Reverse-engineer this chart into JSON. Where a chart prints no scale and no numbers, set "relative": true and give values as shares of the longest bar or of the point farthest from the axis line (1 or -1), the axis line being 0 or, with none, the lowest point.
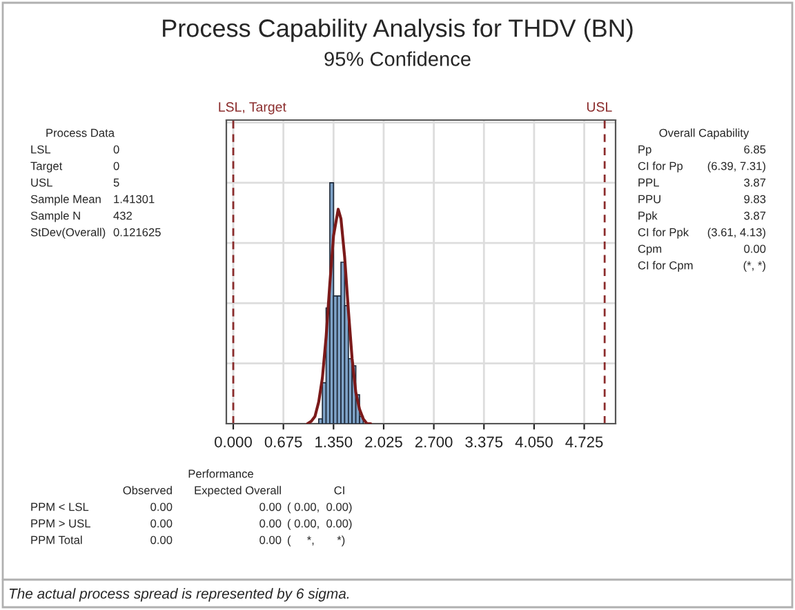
{
  "chart_data": {
    "type": "histogram",
    "title": "Process Capability Analysis for THDV (BN)",
    "subtitle": "95% Confidence",
    "relative": true,
    "xlim": [
      -0.093,
      5.147
    ],
    "xticks": [
      {
        "value": 0,
        "label": "0.000"
      },
      {
        "value": 0.675,
        "label": "0.675"
      },
      {
        "value": 1.35,
        "label": "1.350"
      },
      {
        "value": 2.025,
        "label": "2.025"
      },
      {
        "value": 2.7,
        "label": "2.700"
      },
      {
        "value": 3.375,
        "label": "3.375"
      },
      {
        "value": 4.05,
        "label": "4.050"
      },
      {
        "value": 4.725,
        "label": "4.725"
      }
    ],
    "tick_labels": "x",
    "grid": true,
    "series": [
      {
        "type": "histogram",
        "color": "#7fa3c8",
        "bins": [
          1.15,
          1.2,
          1.25,
          1.3,
          1.35,
          1.4,
          1.45,
          1.5,
          1.55,
          1.6,
          1.65,
          1.7,
          1.75
        ],
        "values": [
          0.02,
          0.17,
          0.48,
          1,
          0.53,
          0.53,
          0.67,
          0.49,
          0.27,
          0.24,
          0.12,
          0.03
        ]
      },
      {
        "type": "line",
        "color": "#7b1a1a",
        "x": [
          1.0,
          1.05,
          1.1,
          1.15,
          1.2,
          1.25,
          1.3,
          1.35,
          1.413,
          1.45,
          1.5,
          1.55,
          1.6,
          1.65,
          1.7,
          1.75,
          1.8,
          1.85
        ],
        "values": [
          0,
          0.01,
          0.03,
          0.09,
          0.19,
          0.36,
          0.58,
          0.78,
          0.89,
          0.85,
          0.69,
          0.47,
          0.27,
          0.13,
          0.06,
          0.02,
          0,
          0
        ]
      }
    ],
    "ref_lines": [
      {
        "axis": "x",
        "value": 0,
        "label": "LSL, Target",
        "color": "#8b2c2c",
        "line_style": "dashed"
      },
      {
        "axis": "x",
        "value": 5,
        "label": "USL",
        "color": "#8b2c2c",
        "line_style": "dashed"
      }
    ],
    "annotations": [
      "Process Data\nLSL\t0\nTarget\t0\nUSL\t5\nSample Mean\t1.41301\nSample N\t432\nStDev(Overall)\t0.121625",
      "Overall Capability\nPp\t6.85\nCI for Pp\t(6.39, 7.31)\nPPL\t3.87\nPPU\t9.83\nPpk\t3.87\nCI for Ppk\t(3.61, 4.13)\nCpm\t0.00\nCI for Cpm\t(*, *)",
      "Performance\n\tObserved\tExpected Overall\tCI\nPPM < LSL\t0.00\t0.00\t( 0.00,  0.00)\nPPM > USL\t0.00\t0.00\t( 0.00,  0.00)\nPPM Total\t0.00\t0.00\t(     *,       *)",
      "The actual process spread is represented by 6 sigma."
    ]
  }
}
